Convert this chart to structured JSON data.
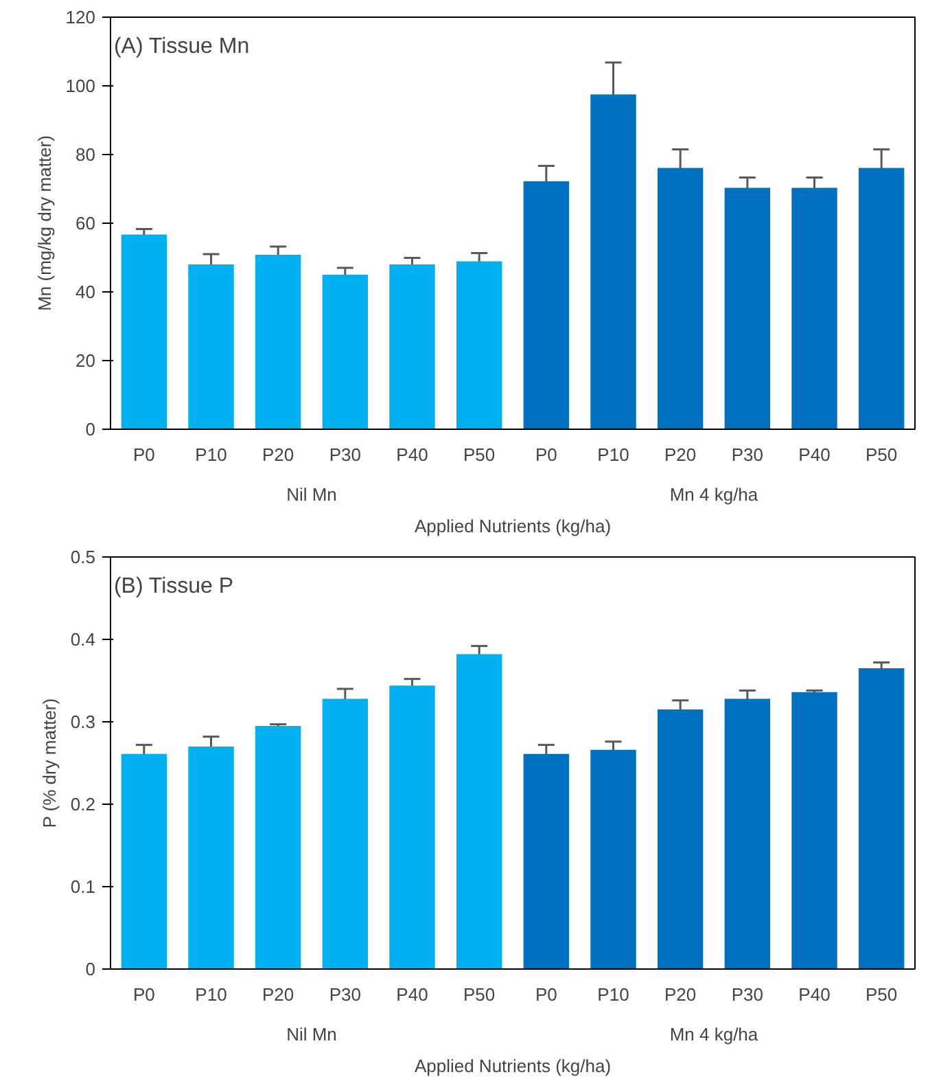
{
  "chart_data": [
    {
      "type": "bar",
      "title": "(A) Tissue Mn",
      "ylabel": "Mn (mg/kg dry matter)",
      "xlabel": "Applied Nutrients (kg/ha)",
      "categories": [
        "P0",
        "P10",
        "P20",
        "P30",
        "P40",
        "P50",
        "P0",
        "P10",
        "P20",
        "P30",
        "P40",
        "P50"
      ],
      "annotations": [
        "Nil Mn",
        "Mn 4 kg/ha"
      ],
      "values": [
        56.7,
        48,
        50.8,
        45,
        48,
        48.9,
        72.2,
        97.5,
        76.1,
        70.3,
        70.3,
        76.1
      ],
      "errors": [
        1.6,
        3,
        2.4,
        2,
        1.9,
        2.4,
        4.5,
        9.3,
        5.4,
        3,
        3,
        5.4
      ],
      "colors": [
        "#00b0f0",
        "#00b0f0",
        "#00b0f0",
        "#00b0f0",
        "#00b0f0",
        "#00b0f0",
        "#0070c0",
        "#0070c0",
        "#0070c0",
        "#0070c0",
        "#0070c0",
        "#0070c0"
      ],
      "ylim": [
        0,
        120
      ],
      "yticks": [
        0,
        20,
        40,
        60,
        80,
        100,
        120
      ]
    },
    {
      "type": "bar",
      "title": "(B) Tissue P",
      "ylabel": "P (% dry matter)",
      "xlabel": "Applied Nutrients (kg/ha)",
      "categories": [
        "P0",
        "P10",
        "P20",
        "P30",
        "P40",
        "P50",
        "P0",
        "P10",
        "P20",
        "P30",
        "P40",
        "P50"
      ],
      "annotations": [
        "Nil Mn",
        "Mn 4 kg/ha"
      ],
      "values": [
        0.261,
        0.27,
        0.295,
        0.328,
        0.344,
        0.382,
        0.261,
        0.266,
        0.315,
        0.328,
        0.336,
        0.365
      ],
      "errors": [
        0.011,
        0.012,
        0.002,
        0.012,
        0.008,
        0.01,
        0.011,
        0.01,
        0.011,
        0.01,
        0.002,
        0.007
      ],
      "colors": [
        "#00b0f0",
        "#00b0f0",
        "#00b0f0",
        "#00b0f0",
        "#00b0f0",
        "#00b0f0",
        "#0070c0",
        "#0070c0",
        "#0070c0",
        "#0070c0",
        "#0070c0",
        "#0070c0"
      ],
      "ylim": [
        0,
        0.5
      ],
      "yticks": [
        0,
        0.1,
        0.2,
        0.3,
        0.4,
        0.5
      ]
    }
  ]
}
